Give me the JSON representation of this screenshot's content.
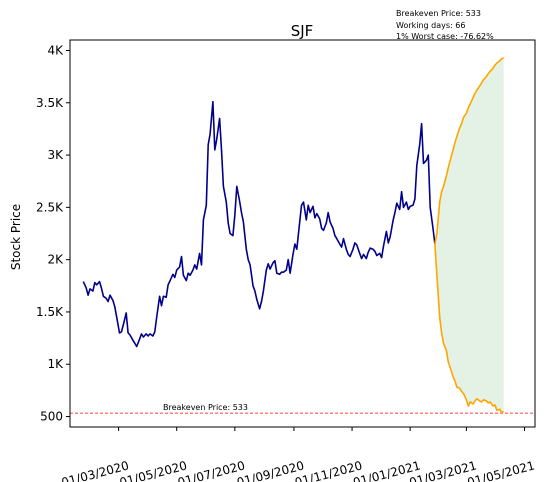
{
  "chart_data": {
    "type": "line",
    "title": "SJF",
    "ylabel": "Stock Price",
    "xlabel": "",
    "ylim": [
      400,
      4100
    ],
    "yticks": [
      {
        "value": 500,
        "label": "500"
      },
      {
        "value": 1000,
        "label": "1K"
      },
      {
        "value": 1500,
        "label": "1.5K"
      },
      {
        "value": 2000,
        "label": "2K"
      },
      {
        "value": 2500,
        "label": "2.5K"
      },
      {
        "value": 3000,
        "label": "3K"
      },
      {
        "value": 3500,
        "label": "3.5K"
      },
      {
        "value": 4000,
        "label": "4K"
      }
    ],
    "xticks": [
      "01/03/2020",
      "01/05/2020",
      "01/07/2020",
      "01/09/2020",
      "01/11/2020",
      "01/01/2021",
      "01/03/2021",
      "01/05/2021"
    ],
    "info_lines": [
      "Breakeven Price: 533",
      "Working days: 66",
      "1% Worst case: -76.62%"
    ],
    "breakeven": {
      "value": 533,
      "label": "Breakeven Price: 533",
      "color": "#ff0000"
    },
    "series": [
      {
        "color": "#00008b",
        "points": [
          [
            "2020-01-24",
            1790
          ],
          [
            "2020-01-27",
            1730
          ],
          [
            "2020-01-29",
            1660
          ],
          [
            "2020-01-31",
            1720
          ],
          [
            "2020-02-03",
            1700
          ],
          [
            "2020-02-05",
            1780
          ],
          [
            "2020-02-07",
            1760
          ],
          [
            "2020-02-10",
            1790
          ],
          [
            "2020-02-12",
            1730
          ],
          [
            "2020-02-14",
            1650
          ],
          [
            "2020-02-17",
            1630
          ],
          [
            "2020-02-19",
            1600
          ],
          [
            "2020-02-21",
            1660
          ],
          [
            "2020-02-24",
            1610
          ],
          [
            "2020-02-26",
            1550
          ],
          [
            "2020-02-28",
            1450
          ],
          [
            "2020-03-02",
            1300
          ],
          [
            "2020-03-04",
            1310
          ],
          [
            "2020-03-06",
            1380
          ],
          [
            "2020-03-09",
            1490
          ],
          [
            "2020-03-11",
            1300
          ],
          [
            "2020-03-13",
            1280
          ],
          [
            "2020-03-16",
            1230
          ],
          [
            "2020-03-18",
            1200
          ],
          [
            "2020-03-20",
            1170
          ],
          [
            "2020-03-23",
            1240
          ],
          [
            "2020-03-25",
            1290
          ],
          [
            "2020-03-27",
            1260
          ],
          [
            "2020-03-30",
            1290
          ],
          [
            "2020-04-01",
            1270
          ],
          [
            "2020-04-03",
            1290
          ],
          [
            "2020-04-06",
            1270
          ],
          [
            "2020-04-08",
            1310
          ],
          [
            "2020-04-10",
            1450
          ],
          [
            "2020-04-13",
            1650
          ],
          [
            "2020-04-15",
            1560
          ],
          [
            "2020-04-17",
            1650
          ],
          [
            "2020-04-20",
            1640
          ],
          [
            "2020-04-22",
            1760
          ],
          [
            "2020-04-24",
            1800
          ],
          [
            "2020-04-27",
            1860
          ],
          [
            "2020-04-29",
            1830
          ],
          [
            "2020-05-01",
            1900
          ],
          [
            "2020-05-04",
            1930
          ],
          [
            "2020-05-06",
            2030
          ],
          [
            "2020-05-08",
            1850
          ],
          [
            "2020-05-11",
            1800
          ],
          [
            "2020-05-13",
            1870
          ],
          [
            "2020-05-15",
            1850
          ],
          [
            "2020-05-18",
            1900
          ],
          [
            "2020-05-20",
            1950
          ],
          [
            "2020-05-22",
            1910
          ],
          [
            "2020-05-25",
            2060
          ],
          [
            "2020-05-27",
            1950
          ],
          [
            "2020-05-29",
            2380
          ],
          [
            "2020-06-01",
            2520
          ],
          [
            "2020-06-03",
            3100
          ],
          [
            "2020-06-05",
            3200
          ],
          [
            "2020-06-08",
            3510
          ],
          [
            "2020-06-10",
            3050
          ],
          [
            "2020-06-12",
            3150
          ],
          [
            "2020-06-15",
            3350
          ],
          [
            "2020-06-17",
            3050
          ],
          [
            "2020-06-19",
            2700
          ],
          [
            "2020-06-22",
            2550
          ],
          [
            "2020-06-24",
            2350
          ],
          [
            "2020-06-26",
            2250
          ],
          [
            "2020-06-29",
            2230
          ],
          [
            "2020-07-01",
            2420
          ],
          [
            "2020-07-03",
            2700
          ],
          [
            "2020-07-06",
            2560
          ],
          [
            "2020-07-08",
            2450
          ],
          [
            "2020-07-10",
            2360
          ],
          [
            "2020-07-13",
            2100
          ],
          [
            "2020-07-15",
            2000
          ],
          [
            "2020-07-17",
            1950
          ],
          [
            "2020-07-20",
            1750
          ],
          [
            "2020-07-22",
            1700
          ],
          [
            "2020-07-24",
            1620
          ],
          [
            "2020-07-27",
            1530
          ],
          [
            "2020-07-29",
            1600
          ],
          [
            "2020-07-31",
            1700
          ],
          [
            "2020-08-03",
            1900
          ],
          [
            "2020-08-05",
            1960
          ],
          [
            "2020-08-07",
            1910
          ],
          [
            "2020-08-10",
            1970
          ],
          [
            "2020-08-12",
            1990
          ],
          [
            "2020-08-14",
            1870
          ],
          [
            "2020-08-17",
            1860
          ],
          [
            "2020-08-19",
            1880
          ],
          [
            "2020-08-21",
            1880
          ],
          [
            "2020-08-24",
            1900
          ],
          [
            "2020-08-26",
            2000
          ],
          [
            "2020-08-28",
            1870
          ],
          [
            "2020-08-31",
            2050
          ],
          [
            "2020-09-02",
            2150
          ],
          [
            "2020-09-04",
            2100
          ],
          [
            "2020-09-07",
            2350
          ],
          [
            "2020-09-09",
            2520
          ],
          [
            "2020-09-11",
            2550
          ],
          [
            "2020-09-14",
            2380
          ],
          [
            "2020-09-16",
            2520
          ],
          [
            "2020-09-18",
            2450
          ],
          [
            "2020-09-21",
            2510
          ],
          [
            "2020-09-23",
            2400
          ],
          [
            "2020-09-25",
            2440
          ],
          [
            "2020-09-28",
            2390
          ],
          [
            "2020-09-30",
            2300
          ],
          [
            "2020-10-02",
            2280
          ],
          [
            "2020-10-05",
            2350
          ],
          [
            "2020-10-07",
            2450
          ],
          [
            "2020-10-09",
            2360
          ],
          [
            "2020-10-12",
            2300
          ],
          [
            "2020-10-14",
            2230
          ],
          [
            "2020-10-16",
            2200
          ],
          [
            "2020-10-19",
            2150
          ],
          [
            "2020-10-21",
            2120
          ],
          [
            "2020-10-23",
            2200
          ],
          [
            "2020-10-26",
            2100
          ],
          [
            "2020-10-28",
            2050
          ],
          [
            "2020-10-30",
            2030
          ],
          [
            "2020-11-02",
            2100
          ],
          [
            "2020-11-04",
            2160
          ],
          [
            "2020-11-06",
            2140
          ],
          [
            "2020-11-09",
            2060
          ],
          [
            "2020-11-11",
            2010
          ],
          [
            "2020-11-13",
            2050
          ],
          [
            "2020-11-16",
            2010
          ],
          [
            "2020-11-18",
            2070
          ],
          [
            "2020-11-20",
            2110
          ],
          [
            "2020-11-23",
            2100
          ],
          [
            "2020-11-25",
            2080
          ],
          [
            "2020-11-27",
            2040
          ],
          [
            "2020-11-30",
            2060
          ],
          [
            "2020-12-02",
            2020
          ],
          [
            "2020-12-04",
            2130
          ],
          [
            "2020-12-07",
            2270
          ],
          [
            "2020-12-09",
            2160
          ],
          [
            "2020-12-11",
            2220
          ],
          [
            "2020-12-14",
            2370
          ],
          [
            "2020-12-16",
            2450
          ],
          [
            "2020-12-18",
            2540
          ],
          [
            "2020-12-21",
            2480
          ],
          [
            "2020-12-23",
            2650
          ],
          [
            "2020-12-25",
            2500
          ],
          [
            "2020-12-28",
            2550
          ],
          [
            "2020-12-30",
            2480
          ],
          [
            "2021-01-01",
            2510
          ],
          [
            "2021-01-04",
            2520
          ],
          [
            "2021-01-06",
            2580
          ],
          [
            "2021-01-08",
            2900
          ],
          [
            "2021-01-11",
            3100
          ],
          [
            "2021-01-13",
            3300
          ],
          [
            "2021-01-15",
            2920
          ],
          [
            "2021-01-18",
            2950
          ],
          [
            "2021-01-20",
            3000
          ],
          [
            "2021-01-22",
            2500
          ],
          [
            "2021-01-25",
            2300
          ],
          [
            "2021-01-27",
            2150
          ]
        ]
      },
      {
        "color": "#ffa500",
        "points": [
          [
            "2021-01-27",
            2150
          ],
          [
            "2021-01-29",
            2250
          ],
          [
            "2021-02-01",
            2550
          ],
          [
            "2021-02-03",
            2650
          ],
          [
            "2021-02-05",
            2700
          ],
          [
            "2021-02-08",
            2800
          ],
          [
            "2021-02-10",
            2880
          ],
          [
            "2021-02-12",
            2950
          ],
          [
            "2021-02-15",
            3050
          ],
          [
            "2021-02-17",
            3120
          ],
          [
            "2021-02-19",
            3180
          ],
          [
            "2021-02-22",
            3260
          ],
          [
            "2021-02-24",
            3300
          ],
          [
            "2021-02-26",
            3360
          ],
          [
            "2021-03-01",
            3400
          ],
          [
            "2021-03-03",
            3450
          ],
          [
            "2021-03-05",
            3490
          ],
          [
            "2021-03-08",
            3550
          ],
          [
            "2021-03-10",
            3590
          ],
          [
            "2021-03-12",
            3620
          ],
          [
            "2021-03-15",
            3660
          ],
          [
            "2021-03-17",
            3690
          ],
          [
            "2021-03-19",
            3720
          ],
          [
            "2021-03-22",
            3750
          ],
          [
            "2021-03-24",
            3780
          ],
          [
            "2021-03-26",
            3800
          ],
          [
            "2021-03-29",
            3830
          ],
          [
            "2021-03-31",
            3860
          ],
          [
            "2021-04-02",
            3880
          ],
          [
            "2021-04-05",
            3900
          ],
          [
            "2021-04-07",
            3920
          ],
          [
            "2021-04-09",
            3930
          ]
        ]
      },
      {
        "color": "#ffa500",
        "points": [
          [
            "2021-01-27",
            2150
          ],
          [
            "2021-01-29",
            1850
          ],
          [
            "2021-02-01",
            1450
          ],
          [
            "2021-02-03",
            1300
          ],
          [
            "2021-02-05",
            1200
          ],
          [
            "2021-02-08",
            1130
          ],
          [
            "2021-02-10",
            1020
          ],
          [
            "2021-02-12",
            970
          ],
          [
            "2021-02-15",
            880
          ],
          [
            "2021-02-17",
            840
          ],
          [
            "2021-02-19",
            780
          ],
          [
            "2021-02-22",
            770
          ],
          [
            "2021-02-24",
            740
          ],
          [
            "2021-02-26",
            720
          ],
          [
            "2021-03-01",
            660
          ],
          [
            "2021-03-03",
            600
          ],
          [
            "2021-03-05",
            640
          ],
          [
            "2021-03-08",
            620
          ],
          [
            "2021-03-10",
            650
          ],
          [
            "2021-03-12",
            670
          ],
          [
            "2021-03-15",
            650
          ],
          [
            "2021-03-17",
            640
          ],
          [
            "2021-03-19",
            660
          ],
          [
            "2021-03-22",
            650
          ],
          [
            "2021-03-24",
            630
          ],
          [
            "2021-03-26",
            640
          ],
          [
            "2021-03-29",
            600
          ],
          [
            "2021-03-31",
            610
          ],
          [
            "2021-04-02",
            560
          ],
          [
            "2021-04-05",
            570
          ],
          [
            "2021-04-07",
            540
          ],
          [
            "2021-04-09",
            550
          ]
        ]
      }
    ],
    "band_color": "#c8e6c9"
  }
}
